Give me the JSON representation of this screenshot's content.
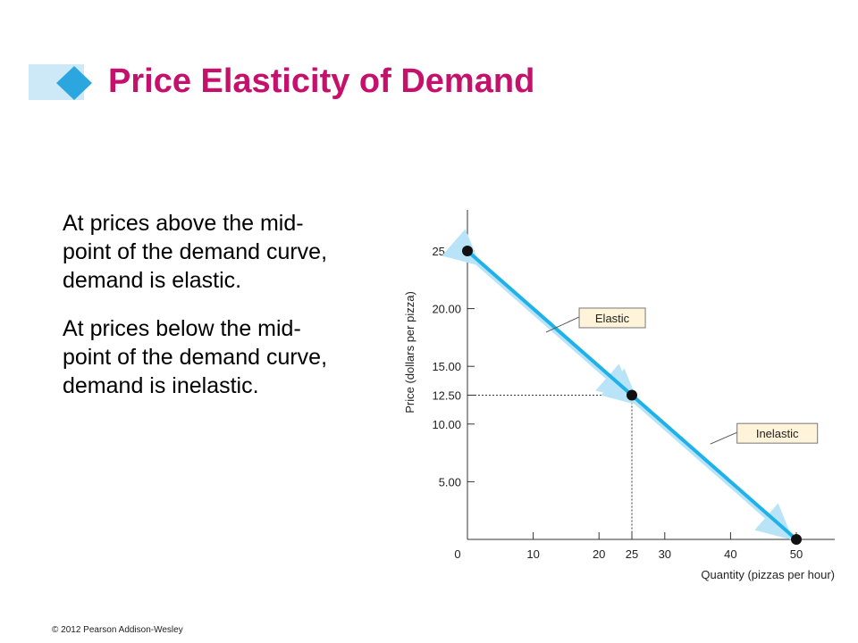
{
  "slide": {
    "title": "Price Elasticity of Demand",
    "paragraphs": [
      "At prices above the mid-point of the demand curve, demand is elastic.",
      "At prices below the mid-point of the demand curve, demand is inelastic."
    ],
    "footer": "© 2012 Pearson Addison-Wesley"
  },
  "colors": {
    "title": "#c5116b",
    "demand_line": "#1fb2ea",
    "arrow": "#b9e4f7",
    "label_box": "#fff3d9"
  },
  "chart_data": {
    "type": "line",
    "title": "",
    "xlabel": "Quantity (pizzas per hour)",
    "ylabel": "Price (dollars per pizza)",
    "xlim": [
      0,
      55
    ],
    "ylim": [
      0,
      27.5
    ],
    "x_ticks": [
      0,
      10,
      20,
      25,
      30,
      40,
      50
    ],
    "x_tick_labels": [
      "0",
      "10",
      "20",
      "25",
      "30",
      "40",
      "50"
    ],
    "y_ticks": [
      5,
      10,
      12.5,
      15,
      20,
      25
    ],
    "y_tick_labels": [
      "5.00",
      "10.00",
      "12.50",
      "15.00",
      "20.00",
      "25.00"
    ],
    "grid": false,
    "series": [
      {
        "x": [
          0,
          25,
          50
        ],
        "y": [
          25,
          12.5,
          0
        ]
      }
    ],
    "midpoint": {
      "x": 25,
      "y": 12.5
    },
    "annotations": [
      {
        "text": "Elastic",
        "x": 14,
        "y": 18.5
      },
      {
        "text": "Inelastic",
        "x": 38,
        "y": 8.5
      }
    ]
  }
}
